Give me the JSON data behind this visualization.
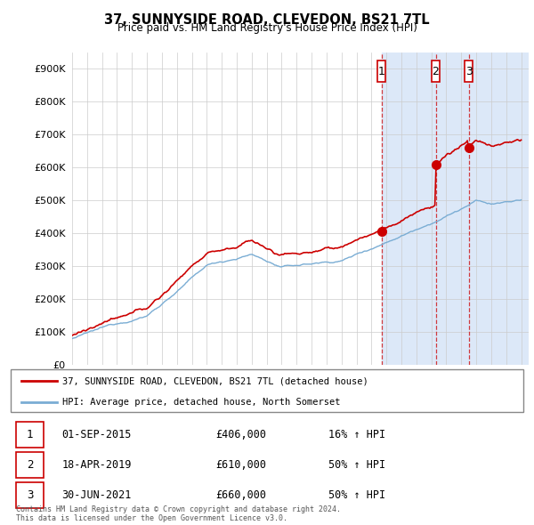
{
  "title": "37, SUNNYSIDE ROAD, CLEVEDON, BS21 7TL",
  "subtitle": "Price paid vs. HM Land Registry's House Price Index (HPI)",
  "legend_line1": "37, SUNNYSIDE ROAD, CLEVEDON, BS21 7TL (detached house)",
  "legend_line2": "HPI: Average price, detached house, North Somerset",
  "footer": "Contains HM Land Registry data © Crown copyright and database right 2024.\nThis data is licensed under the Open Government Licence v3.0.",
  "sale_markers": [
    {
      "num": 1,
      "date": "01-SEP-2015",
      "price": "£406,000",
      "pct": "16% ↑ HPI",
      "year": 2015.67,
      "price_val": 406000
    },
    {
      "num": 2,
      "date": "18-APR-2019",
      "price": "£610,000",
      "pct": "50% ↑ HPI",
      "year": 2019.29,
      "price_val": 610000
    },
    {
      "num": 3,
      "date": "30-JUN-2021",
      "price": "£660,000",
      "pct": "50% ↑ HPI",
      "year": 2021.5,
      "price_val": 660000
    }
  ],
  "ylim": [
    0,
    950000
  ],
  "xlim_start": 1995.0,
  "xlim_end": 2025.5,
  "background_color": "#dce8f8",
  "chart_bg": "#ffffff",
  "red_color": "#cc0000",
  "blue_color": "#7aadd4",
  "grid_color": "#cccccc",
  "shade_start": 2015.67,
  "shade_color": "#dce8f8"
}
